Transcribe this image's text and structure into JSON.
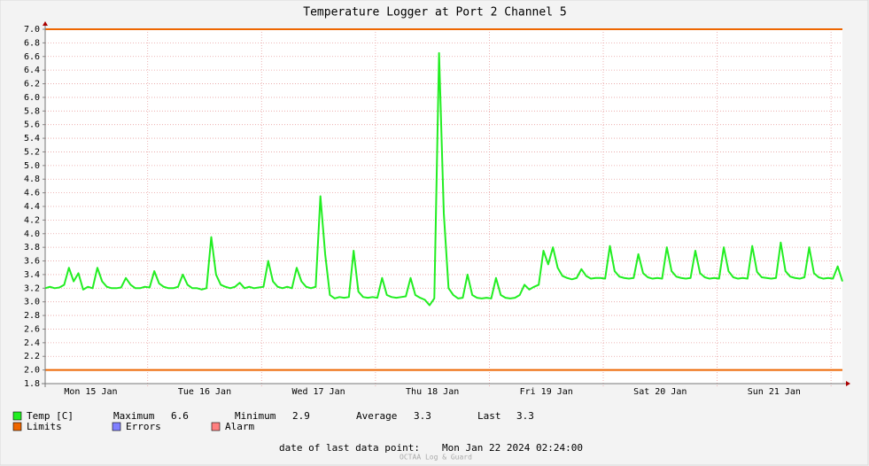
{
  "chart_data": {
    "type": "line",
    "title": "Temperature Logger at Port 2 Channel 5",
    "xlim": [
      "2024-01-15 02:24",
      "2024-01-22 02:24"
    ],
    "xticks": [
      {
        "value": "2024-01-15 12:00",
        "label": "Mon 15 Jan"
      },
      {
        "value": "2024-01-16 12:00",
        "label": "Tue 16 Jan"
      },
      {
        "value": "2024-01-17 12:00",
        "label": "Wed 17 Jan"
      },
      {
        "value": "2024-01-18 12:00",
        "label": "Thu 18 Jan"
      },
      {
        "value": "2024-01-19 12:00",
        "label": "Fri 19 Jan"
      },
      {
        "value": "2024-01-20 12:00",
        "label": "Sat 20 Jan"
      },
      {
        "value": "2024-01-21 12:00",
        "label": "Sun 21 Jan"
      }
    ],
    "xgrid": [
      "2024-01-16 00:00",
      "2024-01-17 00:00",
      "2024-01-18 00:00",
      "2024-01-19 00:00",
      "2024-01-20 00:00",
      "2024-01-21 00:00",
      "2024-01-22 00:00"
    ],
    "ylim": [
      1.8,
      7.0
    ],
    "yticks": [
      1.8,
      {
        "value": 2,
        "label": "2.0"
      },
      2.2,
      2.4,
      2.6,
      2.8,
      {
        "value": 3,
        "label": "3.0"
      },
      3.2,
      3.4,
      3.6,
      3.8,
      {
        "value": 4,
        "label": "4.0"
      },
      4.2,
      4.4,
      4.6,
      4.8,
      {
        "value": 5,
        "label": "5.0"
      },
      5.2,
      5.4,
      5.6,
      5.8,
      {
        "value": 6,
        "label": "6.0"
      },
      6.2,
      6.4,
      6.6,
      6.8,
      {
        "value": 7,
        "label": "7.0"
      }
    ],
    "grid": true,
    "x": [
      "2024-01-15 02:24",
      "2024-01-15 03:24",
      "2024-01-15 04:24",
      "2024-01-15 05:24",
      "2024-01-15 06:24",
      "2024-01-15 07:24",
      "2024-01-15 08:24",
      "2024-01-15 09:24",
      "2024-01-15 10:24",
      "2024-01-15 11:24",
      "2024-01-15 12:24",
      "2024-01-15 13:24",
      "2024-01-15 14:24",
      "2024-01-15 15:24",
      "2024-01-15 16:24",
      "2024-01-15 17:24",
      "2024-01-15 18:24",
      "2024-01-15 19:24",
      "2024-01-15 20:24",
      "2024-01-15 21:24",
      "2024-01-15 22:24",
      "2024-01-15 23:24",
      "2024-01-16 00:24",
      "2024-01-16 01:24",
      "2024-01-16 02:24",
      "2024-01-16 03:24",
      "2024-01-16 04:24",
      "2024-01-16 05:24",
      "2024-01-16 06:24",
      "2024-01-16 07:24",
      "2024-01-16 08:24",
      "2024-01-16 09:24",
      "2024-01-16 10:24",
      "2024-01-16 11:24",
      "2024-01-16 12:24",
      "2024-01-16 13:24",
      "2024-01-16 14:24",
      "2024-01-16 15:24",
      "2024-01-16 16:24",
      "2024-01-16 17:24",
      "2024-01-16 18:24",
      "2024-01-16 19:24",
      "2024-01-16 20:24",
      "2024-01-16 21:24",
      "2024-01-16 22:24",
      "2024-01-16 23:24",
      "2024-01-17 00:24",
      "2024-01-17 01:24",
      "2024-01-17 02:24",
      "2024-01-17 03:24",
      "2024-01-17 04:24",
      "2024-01-17 05:24",
      "2024-01-17 06:24",
      "2024-01-17 07:24",
      "2024-01-17 08:24",
      "2024-01-17 09:24",
      "2024-01-17 10:24",
      "2024-01-17 11:24",
      "2024-01-17 12:24",
      "2024-01-17 13:24",
      "2024-01-17 14:24",
      "2024-01-17 15:24",
      "2024-01-17 16:24",
      "2024-01-17 17:24",
      "2024-01-17 18:24",
      "2024-01-17 19:24",
      "2024-01-17 20:24",
      "2024-01-17 21:24",
      "2024-01-17 22:24",
      "2024-01-17 23:24",
      "2024-01-18 00:24",
      "2024-01-18 01:24",
      "2024-01-18 02:24",
      "2024-01-18 03:24",
      "2024-01-18 04:24",
      "2024-01-18 05:24",
      "2024-01-18 06:24",
      "2024-01-18 07:24",
      "2024-01-18 08:24",
      "2024-01-18 09:24",
      "2024-01-18 10:24",
      "2024-01-18 11:24",
      "2024-01-18 12:24",
      "2024-01-18 13:24",
      "2024-01-18 14:24",
      "2024-01-18 15:24",
      "2024-01-18 16:24",
      "2024-01-18 17:24",
      "2024-01-18 18:24",
      "2024-01-18 19:24",
      "2024-01-18 20:24",
      "2024-01-18 21:24",
      "2024-01-18 22:24",
      "2024-01-18 23:24",
      "2024-01-19 00:24",
      "2024-01-19 01:24",
      "2024-01-19 02:24",
      "2024-01-19 03:24",
      "2024-01-19 04:24",
      "2024-01-19 05:24",
      "2024-01-19 06:24",
      "2024-01-19 07:24",
      "2024-01-19 08:24",
      "2024-01-19 09:24",
      "2024-01-19 10:24",
      "2024-01-19 11:24",
      "2024-01-19 12:24",
      "2024-01-19 13:24",
      "2024-01-19 14:24",
      "2024-01-19 15:24",
      "2024-01-19 16:24",
      "2024-01-19 17:24",
      "2024-01-19 18:24",
      "2024-01-19 19:24",
      "2024-01-19 20:24",
      "2024-01-19 21:24",
      "2024-01-19 22:24",
      "2024-01-19 23:24",
      "2024-01-20 00:24",
      "2024-01-20 01:24",
      "2024-01-20 02:24",
      "2024-01-20 03:24",
      "2024-01-20 04:24",
      "2024-01-20 05:24",
      "2024-01-20 06:24",
      "2024-01-20 07:24",
      "2024-01-20 08:24",
      "2024-01-20 09:24",
      "2024-01-20 10:24",
      "2024-01-20 11:24",
      "2024-01-20 12:24",
      "2024-01-20 13:24",
      "2024-01-20 14:24",
      "2024-01-20 15:24",
      "2024-01-20 16:24",
      "2024-01-20 17:24",
      "2024-01-20 18:24",
      "2024-01-20 19:24",
      "2024-01-20 20:24",
      "2024-01-20 21:24",
      "2024-01-20 22:24",
      "2024-01-20 23:24",
      "2024-01-21 00:24",
      "2024-01-21 01:24",
      "2024-01-21 02:24",
      "2024-01-21 03:24",
      "2024-01-21 04:24",
      "2024-01-21 05:24",
      "2024-01-21 06:24",
      "2024-01-21 07:24",
      "2024-01-21 08:24",
      "2024-01-21 09:24",
      "2024-01-21 10:24",
      "2024-01-21 11:24",
      "2024-01-21 12:24",
      "2024-01-21 13:24",
      "2024-01-21 14:24",
      "2024-01-21 15:24",
      "2024-01-21 16:24",
      "2024-01-21 17:24",
      "2024-01-21 18:24",
      "2024-01-21 19:24",
      "2024-01-21 20:24",
      "2024-01-21 21:24",
      "2024-01-21 22:24",
      "2024-01-21 23:24",
      "2024-01-22 00:24",
      "2024-01-22 01:24",
      "2024-01-22 02:24"
    ],
    "series": [
      {
        "name": "Temp [C]",
        "color": "#22ee22",
        "values": [
          3.2,
          3.22,
          3.2,
          3.21,
          3.25,
          3.5,
          3.3,
          3.42,
          3.18,
          3.22,
          3.2,
          3.5,
          3.3,
          3.22,
          3.2,
          3.2,
          3.21,
          3.35,
          3.25,
          3.2,
          3.2,
          3.22,
          3.21,
          3.45,
          3.27,
          3.22,
          3.2,
          3.2,
          3.22,
          3.4,
          3.25,
          3.2,
          3.2,
          3.18,
          3.2,
          3.95,
          3.4,
          3.25,
          3.22,
          3.2,
          3.22,
          3.28,
          3.2,
          3.22,
          3.2,
          3.21,
          3.22,
          3.6,
          3.3,
          3.22,
          3.2,
          3.22,
          3.2,
          3.5,
          3.3,
          3.22,
          3.2,
          3.22,
          4.55,
          3.7,
          3.1,
          3.05,
          3.07,
          3.06,
          3.07,
          3.75,
          3.15,
          3.07,
          3.06,
          3.07,
          3.06,
          3.35,
          3.1,
          3.07,
          3.06,
          3.07,
          3.08,
          3.35,
          3.1,
          3.06,
          3.03,
          2.95,
          3.05,
          6.65,
          4.3,
          3.2,
          3.1,
          3.05,
          3.06,
          3.4,
          3.1,
          3.06,
          3.05,
          3.06,
          3.05,
          3.35,
          3.1,
          3.06,
          3.05,
          3.06,
          3.1,
          3.25,
          3.18,
          3.22,
          3.25,
          3.75,
          3.55,
          3.8,
          3.5,
          3.38,
          3.35,
          3.33,
          3.35,
          3.48,
          3.38,
          3.34,
          3.35,
          3.35,
          3.34,
          3.82,
          3.45,
          3.37,
          3.35,
          3.34,
          3.35,
          3.7,
          3.42,
          3.36,
          3.34,
          3.35,
          3.34,
          3.8,
          3.45,
          3.37,
          3.35,
          3.34,
          3.35,
          3.75,
          3.42,
          3.36,
          3.34,
          3.35,
          3.34,
          3.8,
          3.45,
          3.36,
          3.34,
          3.35,
          3.34,
          3.82,
          3.44,
          3.36,
          3.35,
          3.34,
          3.35,
          3.87,
          3.45,
          3.37,
          3.35,
          3.34,
          3.36,
          3.8,
          3.42,
          3.36,
          3.34,
          3.35,
          3.34,
          3.52,
          3.3
        ]
      }
    ],
    "limits": {
      "name": "Limits",
      "color": "#ee6600",
      "values": [
        2,
        7
      ]
    },
    "stats": [
      {
        "label": "Maximum",
        "value": 6.6
      },
      {
        "label": "Minimum",
        "value": 2.9
      },
      {
        "label": "Average",
        "value": 3.3
      },
      {
        "label": "Last",
        "value": 3.3
      }
    ],
    "legend_extra": [
      {
        "name": "Errors",
        "color": "#7f7fff"
      },
      {
        "name": "Alarm",
        "color": "#ff7f7f"
      }
    ],
    "footer": {
      "label": "date of last data point:",
      "value": "Mon Jan 22 2024 02:24:00"
    },
    "watermark": "OCTAA Log & Guard"
  }
}
